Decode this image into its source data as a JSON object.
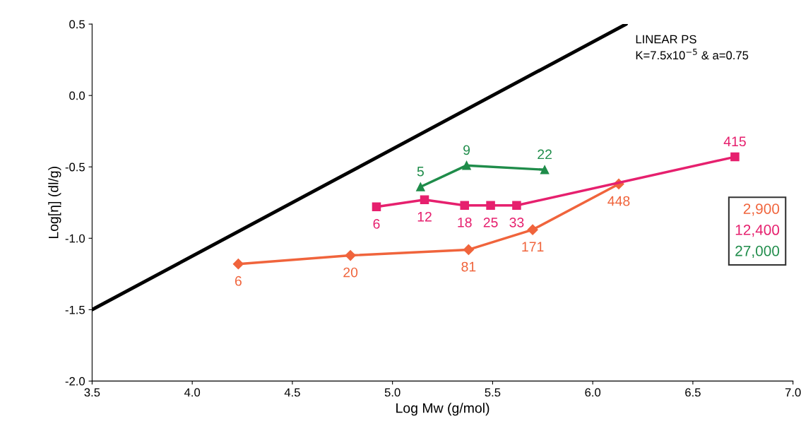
{
  "chart_data": {
    "type": "line",
    "xlabel": "Log Mw (g/mol)",
    "ylabel": "Log[η] (dl/g)",
    "xlim": [
      3.5,
      7.0
    ],
    "ylim": [
      -2.0,
      0.5
    ],
    "xticks": [
      {
        "value": 3.5,
        "label": "3.5"
      },
      {
        "value": 4.0,
        "label": "4.0"
      },
      {
        "value": 4.5,
        "label": "4.5"
      },
      {
        "value": 5.0,
        "label": "5.0"
      },
      {
        "value": 5.5,
        "label": "5.5"
      },
      {
        "value": 6.0,
        "label": "6.0"
      },
      {
        "value": 6.5,
        "label": "6.5"
      },
      {
        "value": 7.0,
        "label": "7.0"
      }
    ],
    "yticks": [
      {
        "value": -2.0,
        "label": "-2.0"
      },
      {
        "value": -1.5,
        "label": "-1.5"
      },
      {
        "value": -1.0,
        "label": "-1.0"
      },
      {
        "value": -0.5,
        "label": "-0.5"
      },
      {
        "value": 0.0,
        "label": "0.0"
      },
      {
        "value": 0.5,
        "label": "0.5"
      }
    ],
    "grid": false,
    "legend": "right",
    "annotations": [
      "LINEAR PS\nK=7.5x10$^{−5}$ & a=0.75",
      {
        "text": "6",
        "x": 4.23,
        "y": -1.18
      },
      {
        "text": "20",
        "x": 4.79,
        "y": -1.12
      },
      {
        "text": "81",
        "x": 5.38,
        "y": -1.08
      },
      {
        "text": "171",
        "x": 5.7,
        "y": -0.94
      },
      {
        "text": "448",
        "x": 6.13,
        "y": -0.62
      },
      {
        "text": "6",
        "x": 4.92,
        "y": -0.78
      },
      {
        "text": "12",
        "x": 5.16,
        "y": -0.73
      },
      {
        "text": "18",
        "x": 5.36,
        "y": -0.77
      },
      {
        "text": "25",
        "x": 5.49,
        "y": -0.77
      },
      {
        "text": "33",
        "x": 5.62,
        "y": -0.77
      },
      {
        "text": "415",
        "x": 6.71,
        "y": -0.43
      },
      {
        "text": "5",
        "x": 5.14,
        "y": -0.64
      },
      {
        "text": "9",
        "x": 5.37,
        "y": -0.49
      },
      {
        "text": "22",
        "x": 5.76,
        "y": -0.52
      }
    ],
    "series": [
      {
        "color": "#000000",
        "marker": "none",
        "x": [
          3.5,
          6.167
        ],
        "values": [
          -1.5,
          0.5
        ]
      },
      {
        "name": "2,900",
        "color": "#f0643c",
        "marker": "diamond",
        "x": [
          4.23,
          4.79,
          5.38,
          5.7,
          6.13
        ],
        "values": [
          -1.18,
          -1.12,
          -1.08,
          -0.94,
          -0.62
        ]
      },
      {
        "name": "12,400",
        "color": "#e6206e",
        "marker": "square",
        "x": [
          4.92,
          5.16,
          5.36,
          5.49,
          5.62,
          6.71
        ],
        "values": [
          -0.78,
          -0.73,
          -0.77,
          -0.77,
          -0.77,
          -0.43
        ]
      },
      {
        "name": "27,000",
        "color": "#1f8c4a",
        "marker": "triangle",
        "x": [
          5.14,
          5.37,
          5.76
        ],
        "values": [
          -0.64,
          -0.49,
          -0.52
        ]
      }
    ]
  }
}
